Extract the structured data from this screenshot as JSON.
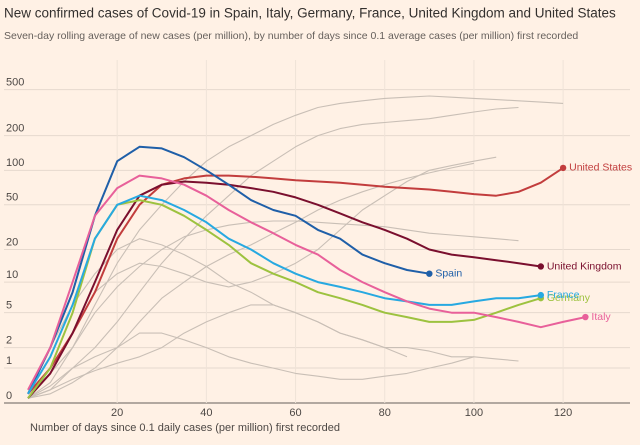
{
  "chart_data": {
    "type": "line",
    "title": "New confirmed cases of Covid-19 in Spain, Italy, Germany, France, United Kingdom and United States",
    "subtitle": "Seven-day rolling average of new cases (per million), by number of days since 0.1 average cases (per million) first recorded",
    "x_label": "Number of days since 0.1 daily cases (per million) first recorded",
    "y_scale": "log1p",
    "xlim": [
      0,
      135
    ],
    "ylim": [
      0,
      900
    ],
    "xticks": [
      20,
      40,
      60,
      80,
      100,
      120
    ],
    "yticks": [
      0,
      1,
      2,
      5,
      10,
      20,
      50,
      100,
      200,
      500
    ],
    "grid": true,
    "x": [
      0,
      5,
      10,
      15,
      20,
      25,
      30,
      35,
      40,
      45,
      50,
      55,
      60,
      65,
      70,
      75,
      80,
      85,
      90,
      95,
      100,
      105,
      110,
      115,
      120,
      125
    ],
    "series": [
      {
        "color": "#c9bfb6",
        "values": [
          0.1,
          0.5,
          2,
          6,
          15,
          30,
          50,
          80,
          120,
          160,
          200,
          250,
          300,
          350,
          380,
          400,
          420,
          430,
          440,
          430,
          420,
          410,
          400,
          390,
          380,
          null
        ]
      },
      {
        "color": "#c9bfb6",
        "values": [
          0.1,
          0.3,
          1,
          2,
          4,
          8,
          15,
          25,
          40,
          60,
          90,
          120,
          160,
          200,
          230,
          250,
          260,
          270,
          280,
          300,
          320,
          340,
          350,
          null,
          null,
          null
        ]
      },
      {
        "color": "#c9bfb6",
        "values": [
          0.2,
          1,
          3,
          8,
          12,
          15,
          14,
          12,
          10,
          9,
          10,
          12,
          15,
          20,
          30,
          45,
          60,
          80,
          100,
          110,
          120,
          130,
          null,
          null,
          null,
          null
        ]
      },
      {
        "color": "#c9bfb6",
        "values": [
          0.1,
          0.4,
          1,
          1.5,
          2,
          3,
          3,
          2.5,
          2,
          1.5,
          1.2,
          1,
          0.8,
          0.7,
          0.6,
          0.6,
          0.7,
          0.8,
          1,
          1.2,
          1.5,
          null,
          null,
          null,
          null,
          null
        ]
      },
      {
        "color": "#c9bfb6",
        "values": [
          0.3,
          2,
          6,
          12,
          20,
          25,
          22,
          18,
          14,
          10,
          8,
          6,
          5,
          4,
          3,
          2.5,
          2,
          2,
          1.8,
          1.5,
          1.5,
          1.4,
          1.3,
          null,
          null,
          null
        ]
      },
      {
        "color": "#c9bfb6",
        "values": [
          0.1,
          0.2,
          0.5,
          1,
          2,
          4,
          7,
          10,
          14,
          18,
          22,
          28,
          35,
          45,
          55,
          65,
          75,
          85,
          95,
          105,
          115,
          null,
          null,
          null,
          null,
          null
        ]
      },
      {
        "color": "#c9bfb6",
        "values": [
          0.2,
          0.8,
          2,
          5,
          9,
          14,
          20,
          26,
          30,
          33,
          35,
          36,
          36,
          35,
          34,
          33,
          32,
          30,
          28,
          27,
          26,
          25,
          24,
          null,
          null,
          null
        ]
      },
      {
        "color": "#c9bfb6",
        "values": [
          0.1,
          0.3,
          0.6,
          0.9,
          1.2,
          1.5,
          2,
          3,
          4,
          5,
          6,
          6,
          5,
          4,
          3,
          2.5,
          2,
          1.5,
          null,
          null,
          null,
          null,
          null,
          null,
          null,
          null
        ]
      },
      {
        "name": "United States",
        "color": "#c23d3d",
        "values": [
          0.2,
          1,
          3,
          8,
          25,
          50,
          75,
          85,
          90,
          90,
          88,
          85,
          82,
          80,
          78,
          75,
          72,
          70,
          68,
          65,
          62,
          60,
          65,
          78,
          105,
          null
        ]
      },
      {
        "name": "United Kingdom",
        "color": "#7a0f2e",
        "values": [
          0.1,
          0.8,
          3,
          10,
          30,
          60,
          75,
          80,
          78,
          75,
          70,
          65,
          58,
          50,
          42,
          35,
          30,
          25,
          20,
          18,
          17,
          16,
          15,
          14,
          null,
          null
        ]
      },
      {
        "name": "Spain",
        "color": "#1f5fa8",
        "values": [
          0.2,
          2,
          8,
          40,
          120,
          160,
          155,
          130,
          100,
          75,
          55,
          45,
          40,
          30,
          25,
          18,
          15,
          13,
          12,
          null,
          null,
          null,
          null,
          null,
          null,
          null
        ]
      },
      {
        "name": "Germany",
        "color": "#9dc23f",
        "values": [
          0.1,
          1,
          5,
          25,
          50,
          55,
          50,
          40,
          30,
          22,
          15,
          12,
          10,
          8,
          7,
          6,
          5,
          4.5,
          4,
          4,
          4.2,
          5,
          6,
          7,
          null,
          null
        ]
      },
      {
        "name": "France",
        "color": "#27a9e1",
        "values": [
          0.2,
          1.5,
          6,
          25,
          50,
          60,
          55,
          45,
          35,
          25,
          20,
          15,
          12,
          10,
          9,
          8,
          7,
          6.5,
          6,
          6,
          6.5,
          7,
          7,
          7.5,
          null,
          null
        ]
      },
      {
        "name": "Italy",
        "color": "#e8609a",
        "values": [
          0.3,
          2,
          10,
          40,
          70,
          90,
          85,
          75,
          60,
          45,
          35,
          28,
          22,
          18,
          13,
          10,
          8,
          6.5,
          5.5,
          5,
          5,
          4.5,
          4,
          3.5,
          4,
          4.5
        ]
      }
    ]
  }
}
